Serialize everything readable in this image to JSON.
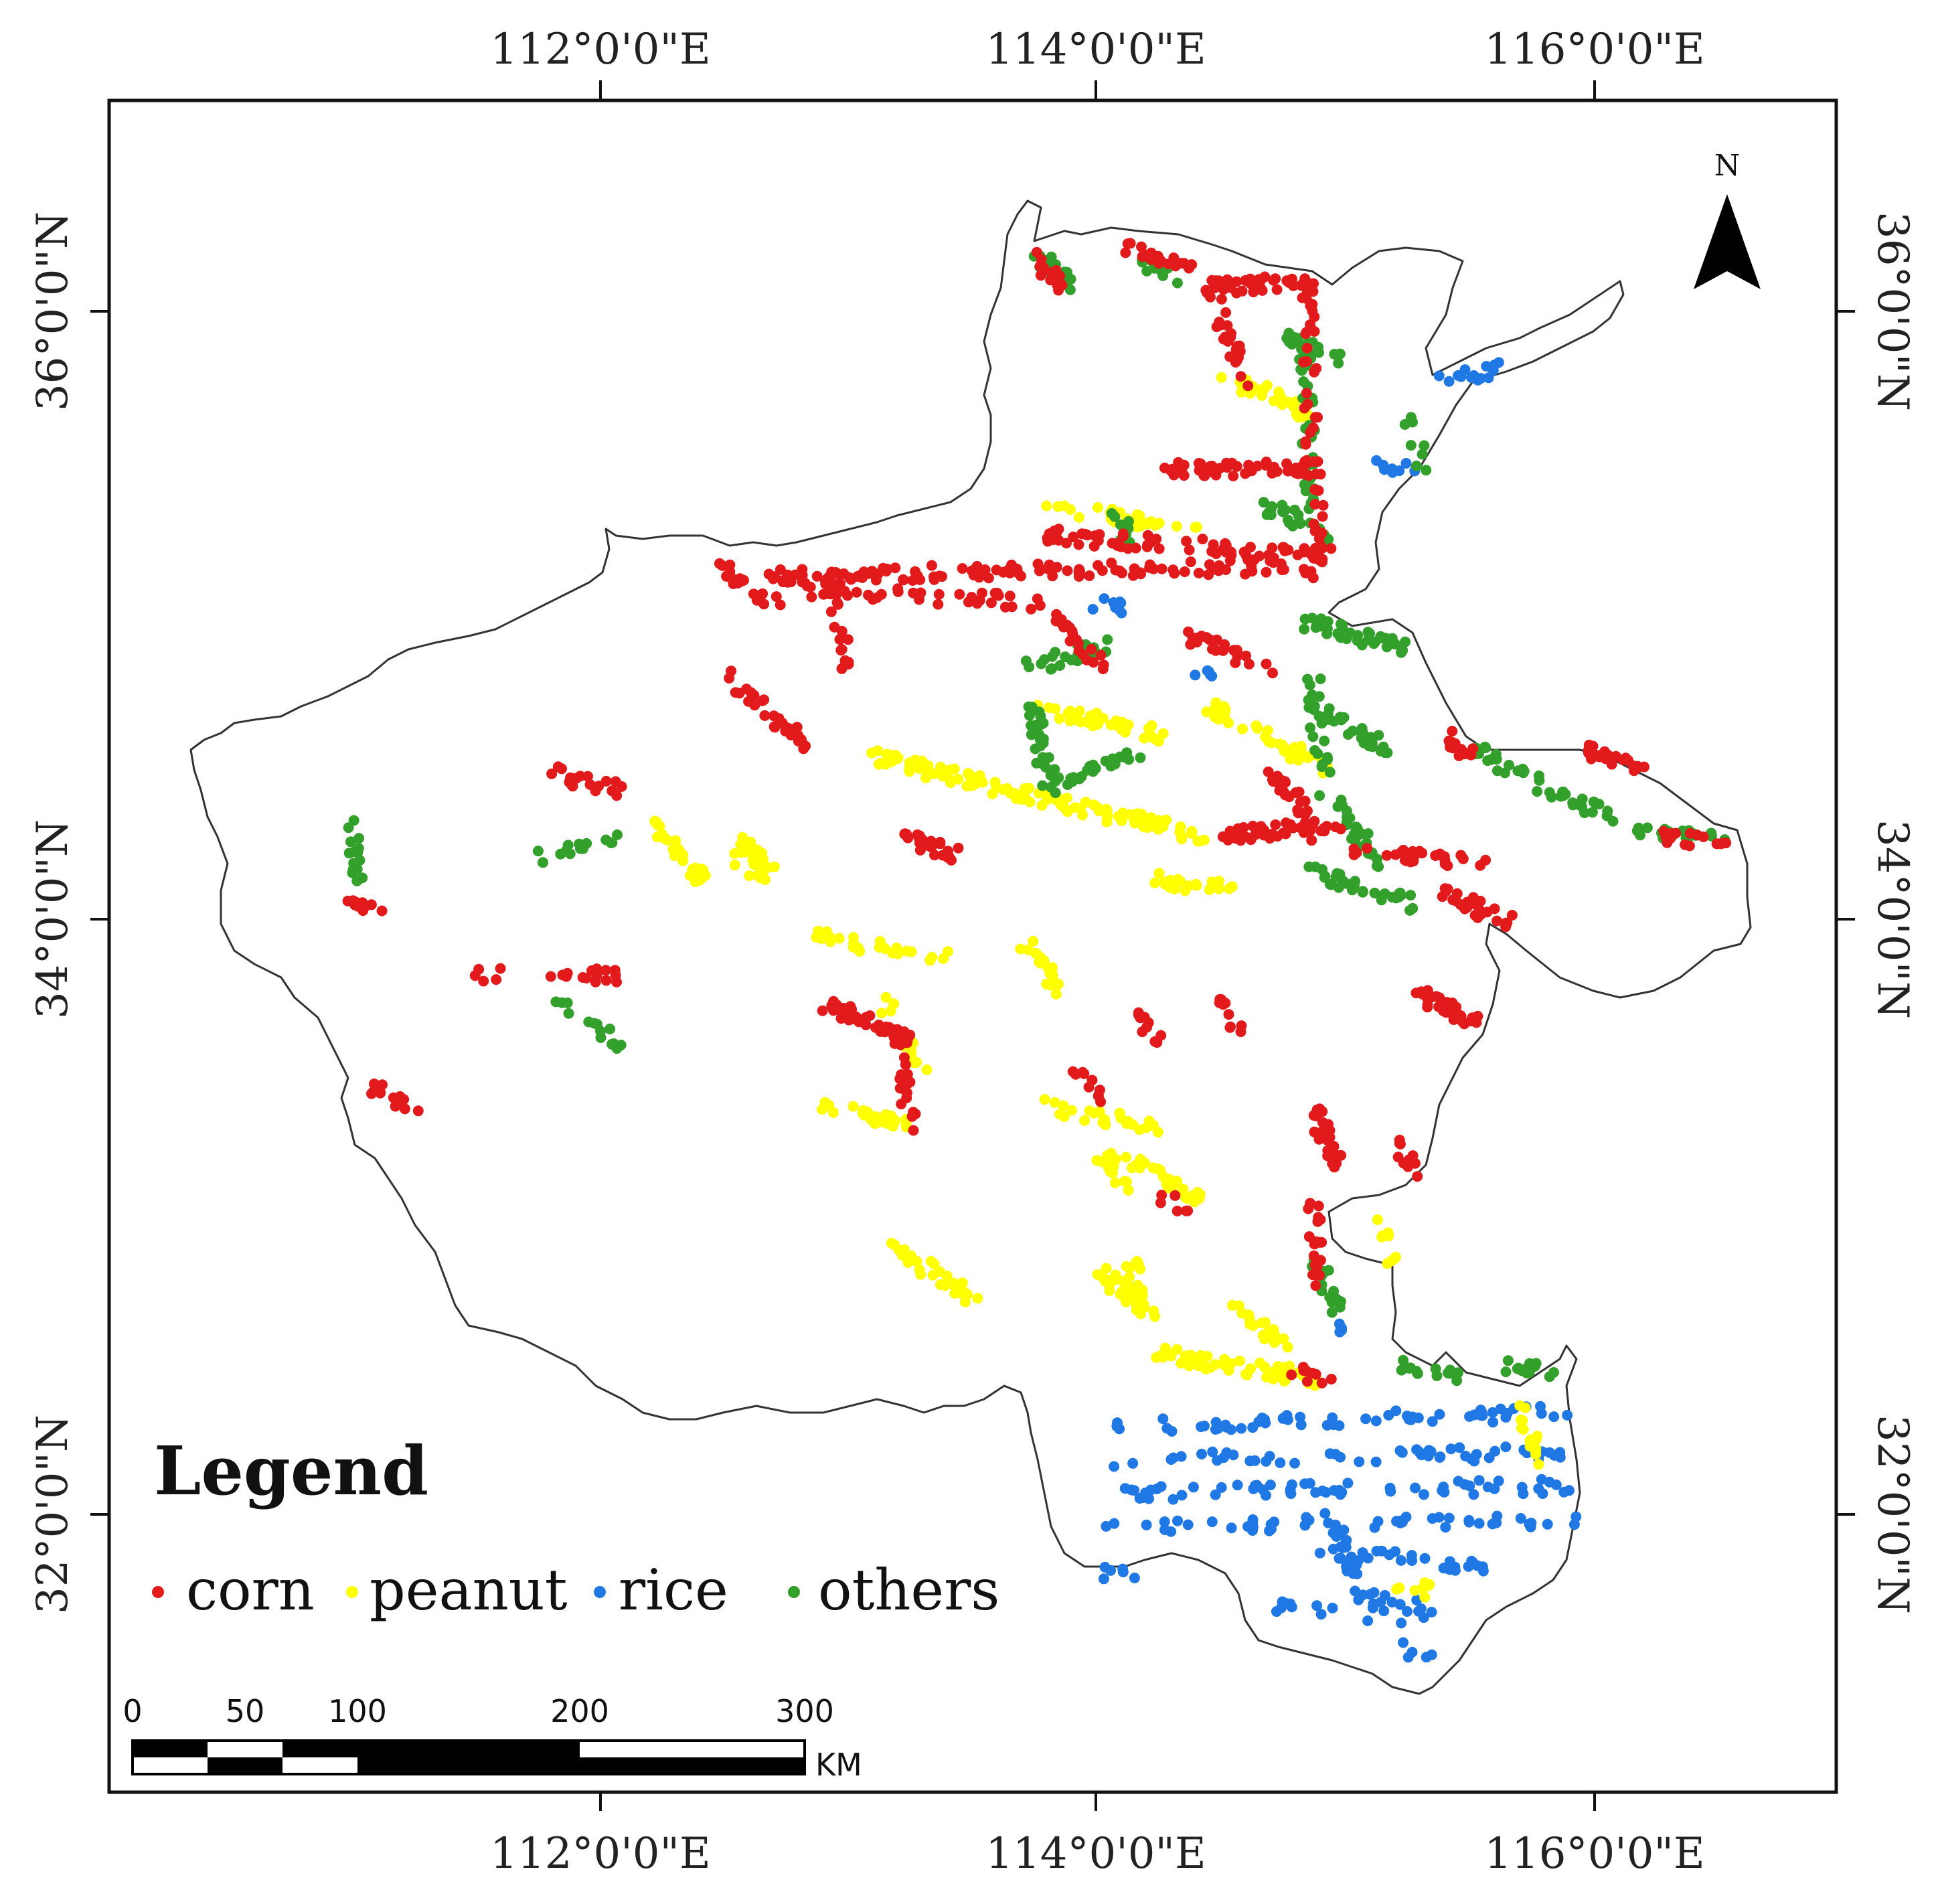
{
  "map": {
    "top_lon_labels": [
      "112°0'0\"E",
      "114°0'0\"E",
      "116°0'0\"E"
    ],
    "bottom_lon_labels": [
      "112°0'0\"E",
      "114°0'0\"E",
      "116°0'0\"E"
    ],
    "left_lat_labels": [
      "36°0'0\"N",
      "34°0'0\"N",
      "32°0'0\"N"
    ],
    "right_lat_labels": [
      "36°0'0\"N",
      "34°0'0\"N",
      "32°0'0\"N"
    ],
    "north_arrow_label": "N",
    "north_arrow_icon": "north-arrow-icon"
  },
  "legend": {
    "title": "Legend",
    "items": [
      {
        "label": "corn",
        "color": "#e31a1c"
      },
      {
        "label": "peanut",
        "color": "#ffff00"
      },
      {
        "label": "rice",
        "color": "#1f78e4"
      },
      {
        "label": "others",
        "color": "#33a02c"
      }
    ]
  },
  "scale_bar": {
    "ticks": [
      "0",
      "50",
      "100",
      "200",
      "300"
    ],
    "unit": "KM"
  },
  "colors": {
    "corn": "#e31a1c",
    "peanut": "#ffff00",
    "rice": "#1f78e4",
    "others": "#33a02c",
    "boundary": "#333333"
  }
}
